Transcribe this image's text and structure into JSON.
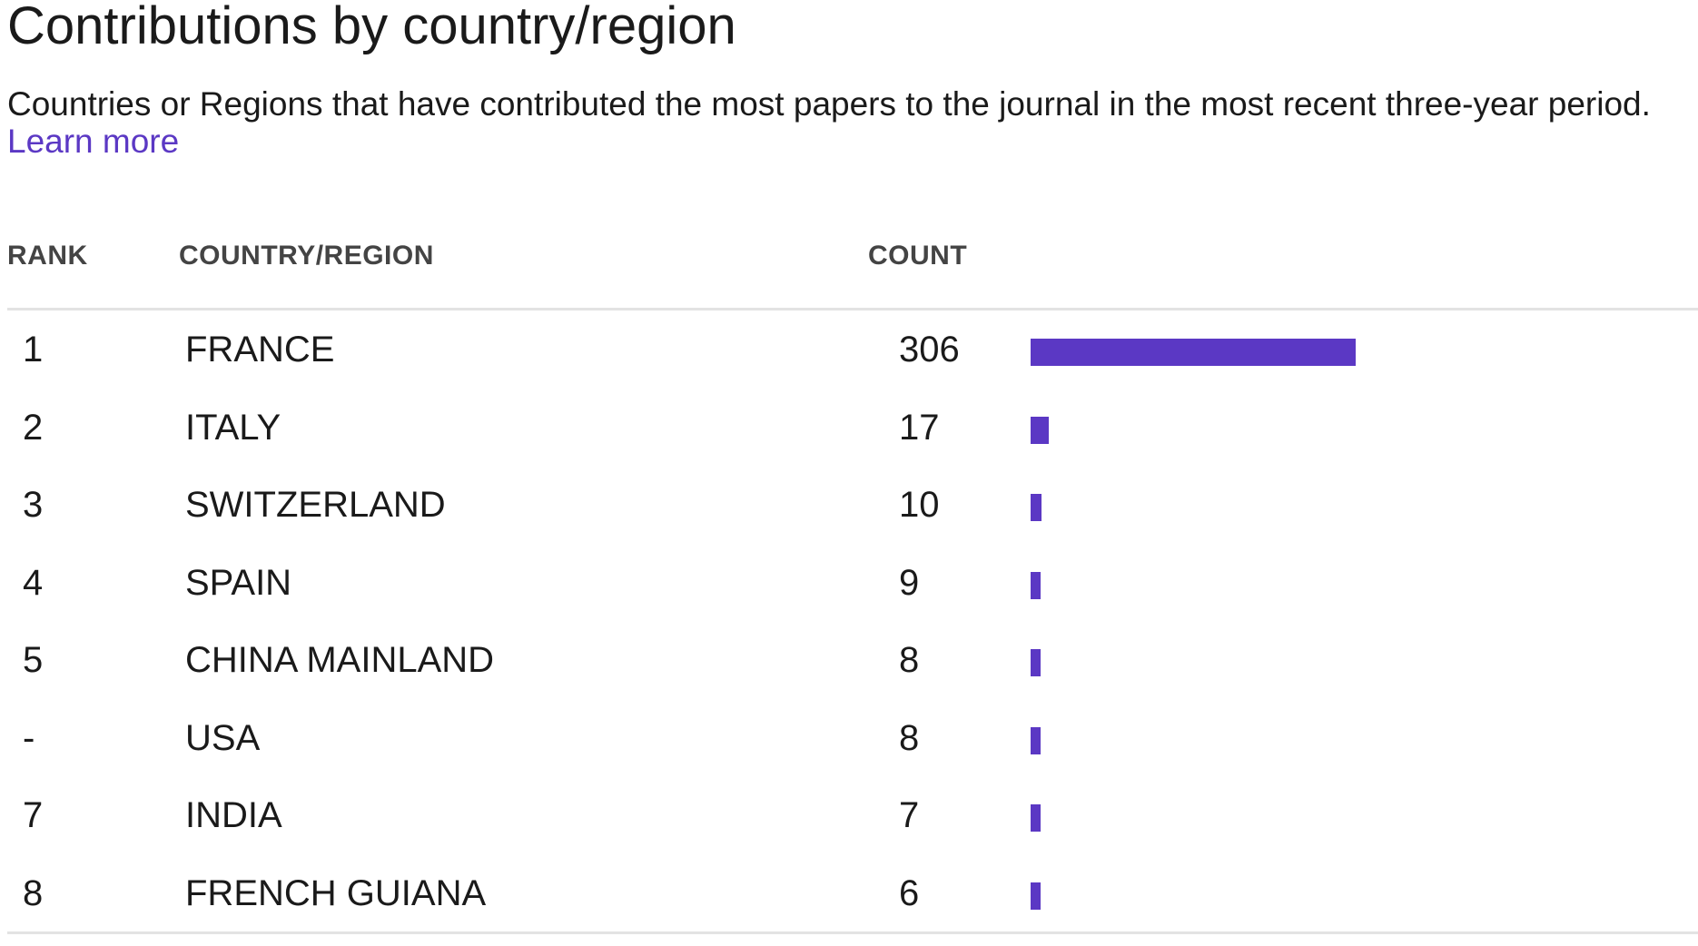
{
  "header": {
    "title": "Contributions by country/region",
    "description": "Countries or Regions that have contributed the most papers to the journal in the most recent three-year period.",
    "learn_more_label": "Learn more"
  },
  "table": {
    "columns": {
      "rank": "RANK",
      "country": "COUNTRY/REGION",
      "count": "COUNT"
    },
    "bar_color": "#5b38c4",
    "max_count": 306,
    "rows": [
      {
        "rank": "1",
        "country": "FRANCE",
        "count": 306
      },
      {
        "rank": "2",
        "country": "ITALY",
        "count": 17
      },
      {
        "rank": "3",
        "country": "SWITZERLAND",
        "count": 10
      },
      {
        "rank": "4",
        "country": "SPAIN",
        "count": 9
      },
      {
        "rank": "5",
        "country": "CHINA MAINLAND",
        "count": 8
      },
      {
        "rank": "-",
        "country": "USA",
        "count": 8
      },
      {
        "rank": "7",
        "country": "INDIA",
        "count": 7
      },
      {
        "rank": "8",
        "country": "FRENCH GUIANA",
        "count": 6
      }
    ]
  }
}
